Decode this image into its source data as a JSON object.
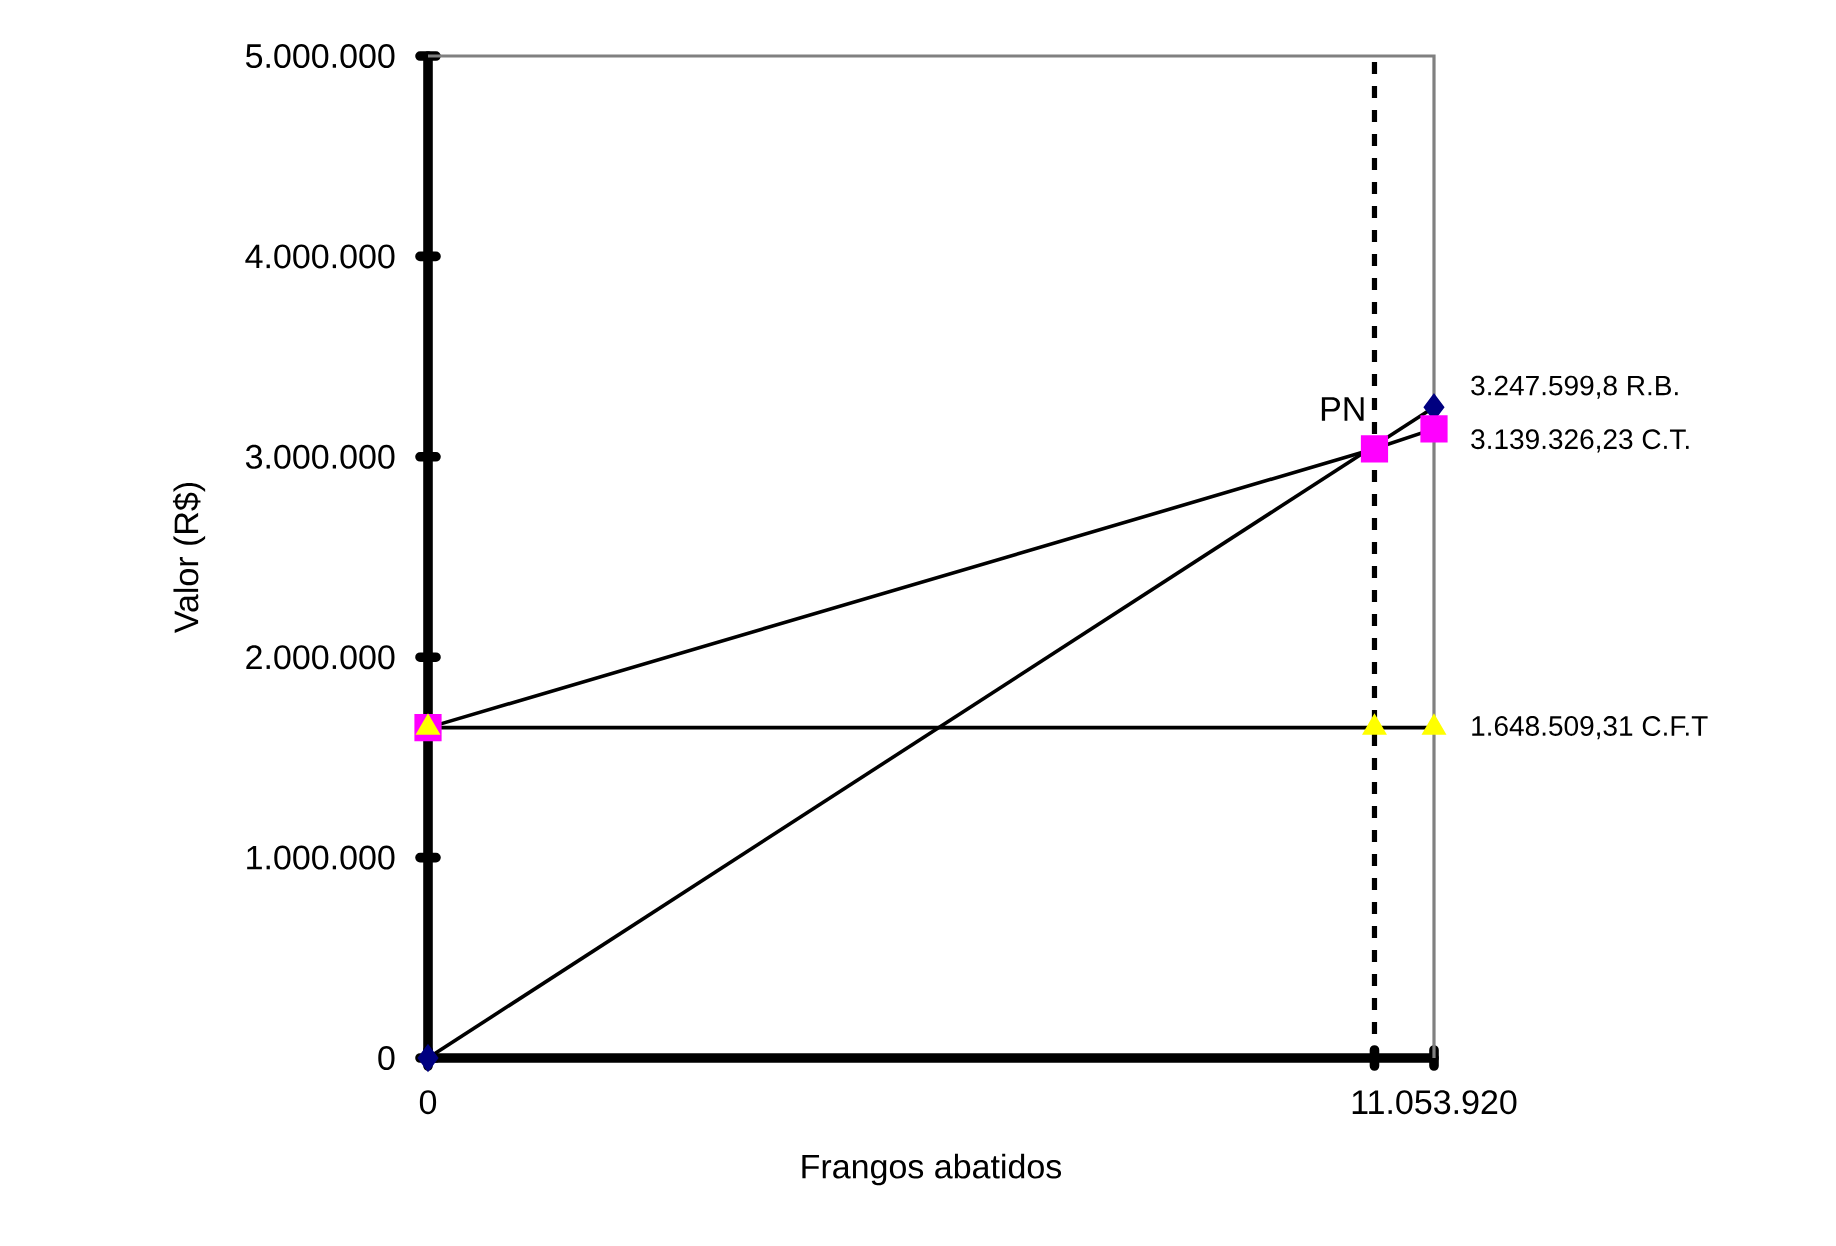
{
  "chart_data": {
    "type": "line",
    "xlabel": "Frangos abatidos",
    "ylabel": "Valor (R$)",
    "xlim": [
      0,
      11053920
    ],
    "ylim": [
      0,
      5000000
    ],
    "xticks": [
      0,
      {
        "value": 10400000,
        "label": null
      },
      {
        "value": 11053920,
        "label": "11.053.920"
      }
    ],
    "yticks": [
      0,
      {
        "value": 1000000,
        "label": "1.000.000"
      },
      {
        "value": 2000000,
        "label": "2.000.000"
      },
      {
        "value": 3000000,
        "label": "3.000.000"
      },
      {
        "value": 4000000,
        "label": "4.000.000"
      },
      {
        "value": 5000000,
        "label": "5.000.000"
      }
    ],
    "grid": false,
    "series": [
      {
        "color": "#000080",
        "marker": "diamond",
        "x": [
          0,
          11053920
        ],
        "values": [
          0,
          3247599.8
        ],
        "value_labels": [
          null,
          "3.247.599,8 R.B."
        ]
      },
      {
        "color": "#ff00ff",
        "marker": "square",
        "x": [
          0,
          10400000,
          11053920
        ],
        "values": [
          1648509.31,
          3040000,
          3139326.23
        ],
        "value_labels": [
          null,
          null,
          "3.139.326,23 C.T."
        ]
      },
      {
        "color": "#ffff00",
        "marker": "triangle",
        "x": [
          0,
          10400000,
          11053920
        ],
        "values": [
          1648509.31,
          1648509.31,
          1648509.31
        ],
        "value_labels": [
          null,
          null,
          "1.648.509,31 C.F.T"
        ]
      }
    ],
    "ref_lines": [
      {
        "axis": "x",
        "value": 10400000,
        "label": "PN",
        "line_style": "dotted"
      }
    ]
  }
}
